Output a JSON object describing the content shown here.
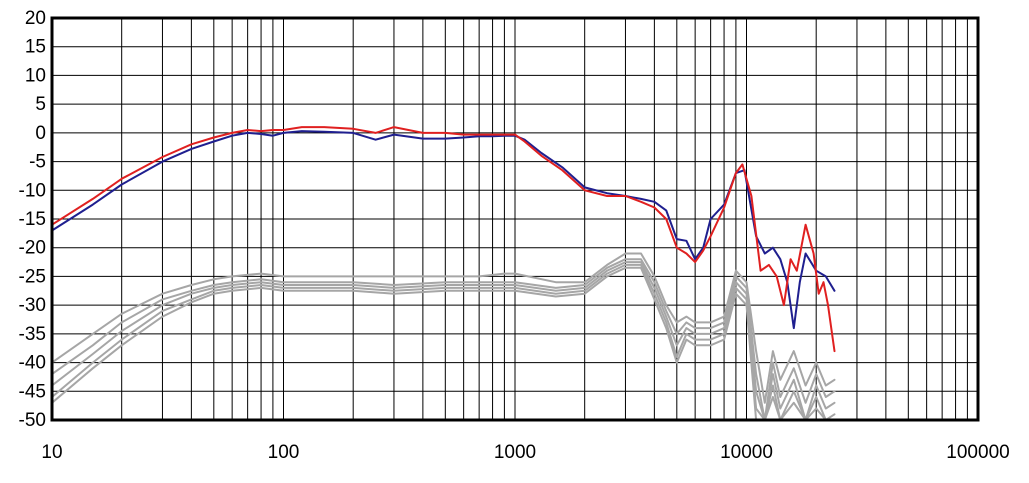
{
  "chart_data": {
    "type": "line",
    "title": "",
    "xlabel": "",
    "ylabel": "",
    "x_scale": "log",
    "xlim": [
      10,
      100000
    ],
    "ylim": [
      -50,
      20
    ],
    "grid": true,
    "legend": "none",
    "x_ticks": [
      {
        "value": 10,
        "label": "10"
      },
      {
        "value": 100,
        "label": "100"
      },
      {
        "value": 1000,
        "label": "1000"
      },
      {
        "value": 10000,
        "label": "10000"
      },
      {
        "value": 100000,
        "label": "100000"
      }
    ],
    "y_ticks": [
      {
        "value": 20,
        "label": "20"
      },
      {
        "value": 15,
        "label": "15"
      },
      {
        "value": 10,
        "label": "10"
      },
      {
        "value": 5,
        "label": "5"
      },
      {
        "value": 0,
        "label": "0"
      },
      {
        "value": -5,
        "label": "-5"
      },
      {
        "value": -10,
        "label": "-10"
      },
      {
        "value": -15,
        "label": "-15"
      },
      {
        "value": -20,
        "label": "-20"
      },
      {
        "value": -25,
        "label": "-25"
      },
      {
        "value": -30,
        "label": "-30"
      },
      {
        "value": -35,
        "label": "-35"
      },
      {
        "value": -40,
        "label": "-40"
      },
      {
        "value": -45,
        "label": "-45"
      },
      {
        "value": -50,
        "label": "-50"
      }
    ],
    "series": [
      {
        "color": "#1f1f8f",
        "width": 2,
        "points": [
          [
            10,
            -17
          ],
          [
            15,
            -12.5
          ],
          [
            20,
            -9
          ],
          [
            30,
            -5
          ],
          [
            40,
            -2.8
          ],
          [
            50,
            -1.5
          ],
          [
            60,
            -0.5
          ],
          [
            70,
            0
          ],
          [
            80,
            -0.2
          ],
          [
            90,
            -0.5
          ],
          [
            100,
            0
          ],
          [
            120,
            0.3
          ],
          [
            150,
            0.2
          ],
          [
            200,
            0
          ],
          [
            250,
            -1.2
          ],
          [
            300,
            -0.3
          ],
          [
            400,
            -1
          ],
          [
            500,
            -1
          ],
          [
            600,
            -0.8
          ],
          [
            700,
            -0.6
          ],
          [
            800,
            -0.6
          ],
          [
            900,
            -0.5
          ],
          [
            1000,
            -0.5
          ],
          [
            1100,
            -1.2
          ],
          [
            1300,
            -3.5
          ],
          [
            1600,
            -6
          ],
          [
            2000,
            -9.5
          ],
          [
            2500,
            -10.5
          ],
          [
            3000,
            -11
          ],
          [
            3500,
            -11.5
          ],
          [
            4000,
            -12
          ],
          [
            4500,
            -13.5
          ],
          [
            5000,
            -18.5
          ],
          [
            5500,
            -18.8
          ],
          [
            6000,
            -22
          ],
          [
            6500,
            -20
          ],
          [
            7000,
            -15
          ],
          [
            8000,
            -12.5
          ],
          [
            9000,
            -7
          ],
          [
            9800,
            -6.5
          ],
          [
            11000,
            -18
          ],
          [
            12000,
            -21
          ],
          [
            13000,
            -20
          ],
          [
            14000,
            -22
          ],
          [
            15000,
            -26
          ],
          [
            16000,
            -34
          ],
          [
            17000,
            -26
          ],
          [
            18000,
            -21
          ],
          [
            20000,
            -24
          ],
          [
            22000,
            -25
          ],
          [
            24000,
            -27.5
          ]
        ]
      },
      {
        "color": "#e02020",
        "width": 2,
        "points": [
          [
            10,
            -16
          ],
          [
            15,
            -11.5
          ],
          [
            20,
            -8
          ],
          [
            30,
            -4.2
          ],
          [
            40,
            -2
          ],
          [
            50,
            -0.8
          ],
          [
            60,
            0
          ],
          [
            70,
            0.5
          ],
          [
            80,
            0.3
          ],
          [
            90,
            0.5
          ],
          [
            100,
            0.5
          ],
          [
            120,
            1
          ],
          [
            150,
            1
          ],
          [
            200,
            0.7
          ],
          [
            250,
            0
          ],
          [
            300,
            1
          ],
          [
            400,
            0
          ],
          [
            500,
            0
          ],
          [
            600,
            -0.3
          ],
          [
            700,
            -0.3
          ],
          [
            800,
            -0.3
          ],
          [
            900,
            -0.3
          ],
          [
            1000,
            -0.3
          ],
          [
            1100,
            -1.5
          ],
          [
            1300,
            -4
          ],
          [
            1600,
            -6.5
          ],
          [
            2000,
            -10
          ],
          [
            2500,
            -11
          ],
          [
            3000,
            -11
          ],
          [
            3500,
            -12
          ],
          [
            4000,
            -13
          ],
          [
            4500,
            -15
          ],
          [
            5000,
            -20
          ],
          [
            5500,
            -21
          ],
          [
            6000,
            -22.5
          ],
          [
            6500,
            -20.5
          ],
          [
            7000,
            -18
          ],
          [
            8000,
            -13
          ],
          [
            9000,
            -7
          ],
          [
            9600,
            -5.5
          ],
          [
            10500,
            -11
          ],
          [
            11500,
            -24
          ],
          [
            12500,
            -23
          ],
          [
            13500,
            -25
          ],
          [
            14500,
            -30
          ],
          [
            15500,
            -22
          ],
          [
            16500,
            -24
          ],
          [
            18000,
            -16
          ],
          [
            19500,
            -21
          ],
          [
            20500,
            -28
          ],
          [
            21500,
            -26
          ],
          [
            22500,
            -30
          ],
          [
            24000,
            -38
          ]
        ]
      },
      {
        "color": "#a6a6a6",
        "width": 2,
        "points": [
          [
            10,
            -40
          ],
          [
            15,
            -35
          ],
          [
            20,
            -31.5
          ],
          [
            30,
            -28
          ],
          [
            40,
            -26.5
          ],
          [
            50,
            -25.5
          ],
          [
            60,
            -25
          ],
          [
            80,
            -24.5
          ],
          [
            100,
            -25
          ],
          [
            150,
            -25
          ],
          [
            200,
            -25
          ],
          [
            300,
            -25
          ],
          [
            500,
            -25
          ],
          [
            700,
            -25
          ],
          [
            900,
            -24.5
          ],
          [
            1000,
            -24.5
          ],
          [
            1500,
            -26
          ],
          [
            2000,
            -26
          ],
          [
            2500,
            -23
          ],
          [
            3000,
            -21
          ],
          [
            3500,
            -21
          ],
          [
            4000,
            -25
          ],
          [
            4500,
            -30
          ],
          [
            5000,
            -33
          ],
          [
            5500,
            -32
          ],
          [
            6000,
            -33
          ],
          [
            7000,
            -33
          ],
          [
            8000,
            -32
          ],
          [
            9000,
            -24
          ],
          [
            10000,
            -26
          ],
          [
            11000,
            -38
          ],
          [
            12000,
            -47
          ],
          [
            13000,
            -38
          ],
          [
            14000,
            -43
          ],
          [
            16000,
            -38
          ],
          [
            18000,
            -44
          ],
          [
            20000,
            -40
          ],
          [
            22000,
            -44
          ],
          [
            24000,
            -43
          ]
        ]
      },
      {
        "color": "#a6a6a6",
        "width": 2,
        "points": [
          [
            10,
            -42
          ],
          [
            15,
            -37
          ],
          [
            20,
            -33
          ],
          [
            30,
            -29
          ],
          [
            40,
            -27.5
          ],
          [
            50,
            -26.5
          ],
          [
            60,
            -26
          ],
          [
            80,
            -25.5
          ],
          [
            100,
            -26
          ],
          [
            150,
            -26
          ],
          [
            200,
            -26
          ],
          [
            300,
            -26.5
          ],
          [
            500,
            -26
          ],
          [
            700,
            -26
          ],
          [
            900,
            -26
          ],
          [
            1000,
            -26
          ],
          [
            1500,
            -27
          ],
          [
            2000,
            -26.5
          ],
          [
            2500,
            -23.5
          ],
          [
            3000,
            -22
          ],
          [
            3500,
            -22
          ],
          [
            4000,
            -26
          ],
          [
            4500,
            -31
          ],
          [
            5000,
            -35
          ],
          [
            5500,
            -33
          ],
          [
            6000,
            -34
          ],
          [
            7000,
            -34
          ],
          [
            8000,
            -33
          ],
          [
            9000,
            -25
          ],
          [
            10000,
            -27
          ],
          [
            11000,
            -42
          ],
          [
            12000,
            -50
          ],
          [
            13000,
            -40
          ],
          [
            14000,
            -46
          ],
          [
            16000,
            -41
          ],
          [
            18000,
            -47
          ],
          [
            20000,
            -42
          ],
          [
            22000,
            -46
          ],
          [
            24000,
            -45
          ]
        ]
      },
      {
        "color": "#a6a6a6",
        "width": 2,
        "points": [
          [
            10,
            -44
          ],
          [
            15,
            -38.5
          ],
          [
            20,
            -34.5
          ],
          [
            30,
            -30
          ],
          [
            40,
            -28
          ],
          [
            50,
            -27
          ],
          [
            60,
            -26.5
          ],
          [
            80,
            -26
          ],
          [
            100,
            -26.5
          ],
          [
            150,
            -26.5
          ],
          [
            200,
            -26.5
          ],
          [
            300,
            -27
          ],
          [
            500,
            -26.5
          ],
          [
            700,
            -26.5
          ],
          [
            900,
            -26.5
          ],
          [
            1000,
            -26.5
          ],
          [
            1500,
            -27.5
          ],
          [
            2000,
            -27
          ],
          [
            2500,
            -24
          ],
          [
            3000,
            -22.5
          ],
          [
            3500,
            -22.5
          ],
          [
            4000,
            -27
          ],
          [
            4500,
            -32
          ],
          [
            5000,
            -37
          ],
          [
            5500,
            -34
          ],
          [
            6000,
            -35
          ],
          [
            7000,
            -35
          ],
          [
            8000,
            -34
          ],
          [
            9000,
            -26
          ],
          [
            10000,
            -28
          ],
          [
            11000,
            -45
          ],
          [
            12000,
            -50
          ],
          [
            13000,
            -42
          ],
          [
            14000,
            -48
          ],
          [
            16000,
            -43
          ],
          [
            18000,
            -50
          ],
          [
            20000,
            -44
          ],
          [
            22000,
            -48
          ],
          [
            24000,
            -47
          ]
        ]
      },
      {
        "color": "#a6a6a6",
        "width": 2,
        "points": [
          [
            10,
            -46
          ],
          [
            15,
            -40
          ],
          [
            20,
            -36
          ],
          [
            30,
            -31
          ],
          [
            40,
            -29
          ],
          [
            50,
            -27.5
          ],
          [
            60,
            -27
          ],
          [
            80,
            -26.5
          ],
          [
            100,
            -27
          ],
          [
            150,
            -27
          ],
          [
            200,
            -27
          ],
          [
            300,
            -27.5
          ],
          [
            500,
            -27
          ],
          [
            700,
            -27
          ],
          [
            900,
            -27
          ],
          [
            1000,
            -27
          ],
          [
            1500,
            -28
          ],
          [
            2000,
            -27.5
          ],
          [
            2500,
            -24.5
          ],
          [
            3000,
            -23
          ],
          [
            3500,
            -23
          ],
          [
            4000,
            -28
          ],
          [
            4500,
            -33
          ],
          [
            5000,
            -39
          ],
          [
            5500,
            -35
          ],
          [
            6000,
            -36
          ],
          [
            7000,
            -36
          ],
          [
            8000,
            -35
          ],
          [
            9000,
            -27
          ],
          [
            10000,
            -29
          ],
          [
            11000,
            -48
          ],
          [
            12000,
            -50
          ],
          [
            13000,
            -44
          ],
          [
            14000,
            -50
          ],
          [
            16000,
            -45
          ],
          [
            18000,
            -50
          ],
          [
            20000,
            -46
          ],
          [
            22000,
            -50
          ],
          [
            24000,
            -49
          ]
        ]
      },
      {
        "color": "#a6a6a6",
        "width": 2,
        "points": [
          [
            10,
            -47
          ],
          [
            15,
            -41
          ],
          [
            20,
            -37
          ],
          [
            30,
            -32
          ],
          [
            40,
            -29.5
          ],
          [
            50,
            -28
          ],
          [
            60,
            -27.5
          ],
          [
            80,
            -27
          ],
          [
            100,
            -27.5
          ],
          [
            150,
            -27.5
          ],
          [
            200,
            -27.5
          ],
          [
            300,
            -28
          ],
          [
            500,
            -27.5
          ],
          [
            700,
            -27.5
          ],
          [
            900,
            -27.5
          ],
          [
            1000,
            -27.5
          ],
          [
            1500,
            -28.5
          ],
          [
            2000,
            -28
          ],
          [
            2500,
            -25
          ],
          [
            3000,
            -23.5
          ],
          [
            3500,
            -23.5
          ],
          [
            4000,
            -29
          ],
          [
            4500,
            -34
          ],
          [
            5000,
            -40
          ],
          [
            5500,
            -36
          ],
          [
            6000,
            -37
          ],
          [
            7000,
            -37
          ],
          [
            8000,
            -36
          ],
          [
            9000,
            -28
          ],
          [
            10000,
            -30
          ],
          [
            11000,
            -50
          ],
          [
            12000,
            -50
          ],
          [
            13000,
            -46
          ],
          [
            14000,
            -50
          ],
          [
            16000,
            -47
          ],
          [
            18000,
            -50
          ],
          [
            20000,
            -48
          ],
          [
            22000,
            -50
          ],
          [
            24000,
            -50
          ]
        ]
      }
    ]
  }
}
